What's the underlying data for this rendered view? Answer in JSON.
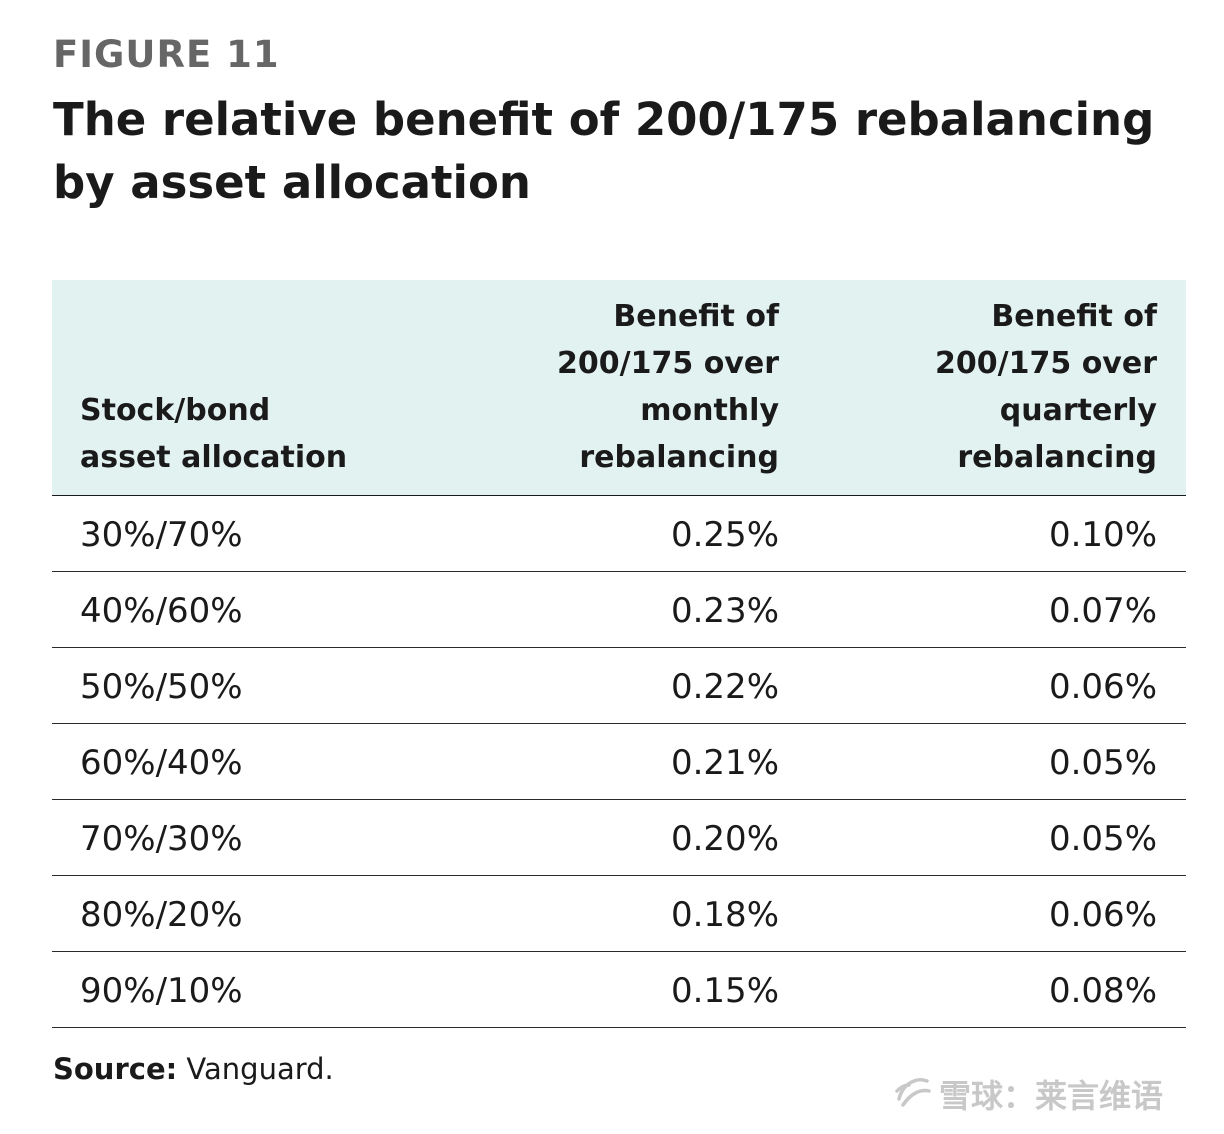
{
  "figure_label": "FIGURE 11",
  "title": "The relative benefit of 200/175 rebalancing by asset allocation",
  "chart_data": {
    "type": "table",
    "title": "The relative benefit of 200/175 rebalancing by asset allocation",
    "columns": [
      "Stock/bond\nasset allocation",
      "Benefit of\n200/175 over\nmonthly\nrebalancing",
      "Benefit of\n200/175 over\nquarterly\nrebalancing"
    ],
    "rows": [
      [
        "30%/70%",
        "0.25%",
        "0.10%"
      ],
      [
        "40%/60%",
        "0.23%",
        "0.07%"
      ],
      [
        "50%/50%",
        "0.22%",
        "0.06%"
      ],
      [
        "60%/40%",
        "0.21%",
        "0.05%"
      ],
      [
        "70%/30%",
        "0.20%",
        "0.05%"
      ],
      [
        "80%/20%",
        "0.18%",
        "0.06%"
      ],
      [
        "90%/10%",
        "0.15%",
        "0.08%"
      ]
    ]
  },
  "source": {
    "label": "Source:",
    "text": " Vanguard."
  },
  "watermark": {
    "text": "雪球：莱言维语",
    "icon": "snowball-logo-icon"
  },
  "colors": {
    "header_bg": "#e2f2f1",
    "figure_label": "#666666",
    "text": "#1a1a1a",
    "watermark": "#c8c8c8"
  }
}
